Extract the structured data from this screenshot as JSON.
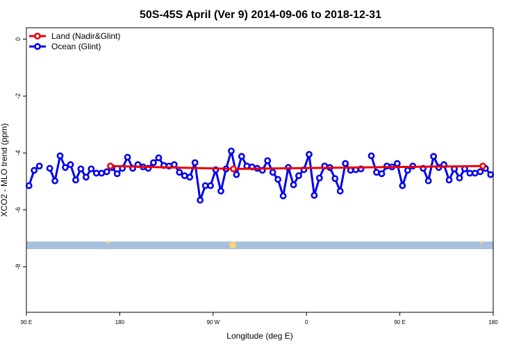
{
  "chart_data": {
    "type": "line",
    "title": "50S-45S April (Ver 9)   2014-09-06 to 2018-12-31",
    "xlabel": "Longitude (deg E)",
    "ylabel": "XCO2 - MLO trend (ppm)",
    "xlim": [
      90,
      540
    ],
    "xticks": [
      {
        "value": 90,
        "label": "90 E"
      },
      180,
      {
        "value": 270,
        "label": "90 W"
      },
      {
        "value": 360,
        "label": "0"
      },
      {
        "value": 450,
        "label": "90 E"
      },
      {
        "value": 540,
        "label": "180"
      }
    ],
    "ylim": [
      -9.6,
      0.4
    ],
    "yticks": [
      0,
      -2,
      -4,
      -6,
      -8
    ],
    "legend": "top-left",
    "series": [
      {
        "name": "Land (Nadir&Glint)",
        "color": "#ee0000",
        "x": [
          171,
          289.6,
          530
        ],
        "values": [
          -4.46,
          -4.56,
          -4.46
        ]
      },
      {
        "name": "Ocean (Glint)",
        "color": "#0000ee",
        "x": [
          92.5,
          97.5,
          102.5,
          107.5,
          112.5,
          117.5,
          122.5,
          127.5,
          132.5,
          137.5,
          142.5,
          147.5,
          152.5,
          157.5,
          162.5,
          167.5,
          172.5,
          177.5,
          182.5,
          187.5,
          192.5,
          197.5,
          202.5,
          207.5,
          212.5,
          217.5,
          222.5,
          227.5,
          232.5,
          237.5,
          242.5,
          247.5,
          252.5,
          257.5,
          262.5,
          267.5,
          272.5,
          277.5,
          282.5,
          287.5,
          292.5,
          297.5,
          302.5,
          307.5,
          312.5,
          317.5,
          322.5,
          327.5,
          332.5,
          337.5,
          342.5,
          347.5,
          352.5,
          357.5,
          362.5,
          367.5,
          372.5,
          377.5,
          382.5,
          387.5,
          392.5,
          397.5,
          402.5,
          407.5,
          412.5,
          417.5,
          422.5,
          427.5,
          432.5,
          437.5,
          442.5,
          447.5,
          452.5,
          457.5,
          462.5,
          467.5,
          472.5,
          477.5,
          482.5,
          487.5,
          492.5,
          497.5,
          502.5,
          507.5,
          512.5,
          517.5,
          522.5,
          527.5,
          532.5,
          537.5
        ],
        "values": [
          -5.15,
          -4.61,
          -4.46,
          null,
          -4.54,
          -4.98,
          -4.1,
          -4.51,
          -4.41,
          -4.95,
          -4.56,
          -4.85,
          -4.56,
          -4.71,
          -4.71,
          -4.66,
          -4.51,
          -4.73,
          -4.54,
          -4.15,
          -4.54,
          -4.41,
          -4.49,
          -4.54,
          -4.34,
          -4.17,
          -4.44,
          -4.46,
          -4.41,
          -4.68,
          -4.8,
          -4.85,
          -4.34,
          -5.66,
          -5.15,
          -5.15,
          -4.59,
          -5.34,
          -4.56,
          -3.93,
          -4.76,
          -4.12,
          -4.46,
          -4.49,
          -4.54,
          -4.61,
          -4.27,
          -4.68,
          -4.93,
          -5.51,
          -4.51,
          -5.12,
          -4.8,
          -4.59,
          -4.05,
          -5.49,
          -4.88,
          -4.46,
          -4.51,
          -4.9,
          -5.34,
          -4.37,
          -4.61,
          -4.59,
          -4.56,
          null,
          -4.1,
          -4.68,
          -4.73,
          -4.46,
          -4.49,
          -4.37,
          -5.15,
          -4.61,
          -4.46,
          null,
          -4.54,
          -4.98,
          -4.12,
          -4.51,
          -4.41,
          -4.95,
          -4.56,
          -4.88,
          -4.56,
          -4.71,
          -4.71,
          -4.66,
          -4.54,
          -4.76
        ]
      }
    ]
  }
}
